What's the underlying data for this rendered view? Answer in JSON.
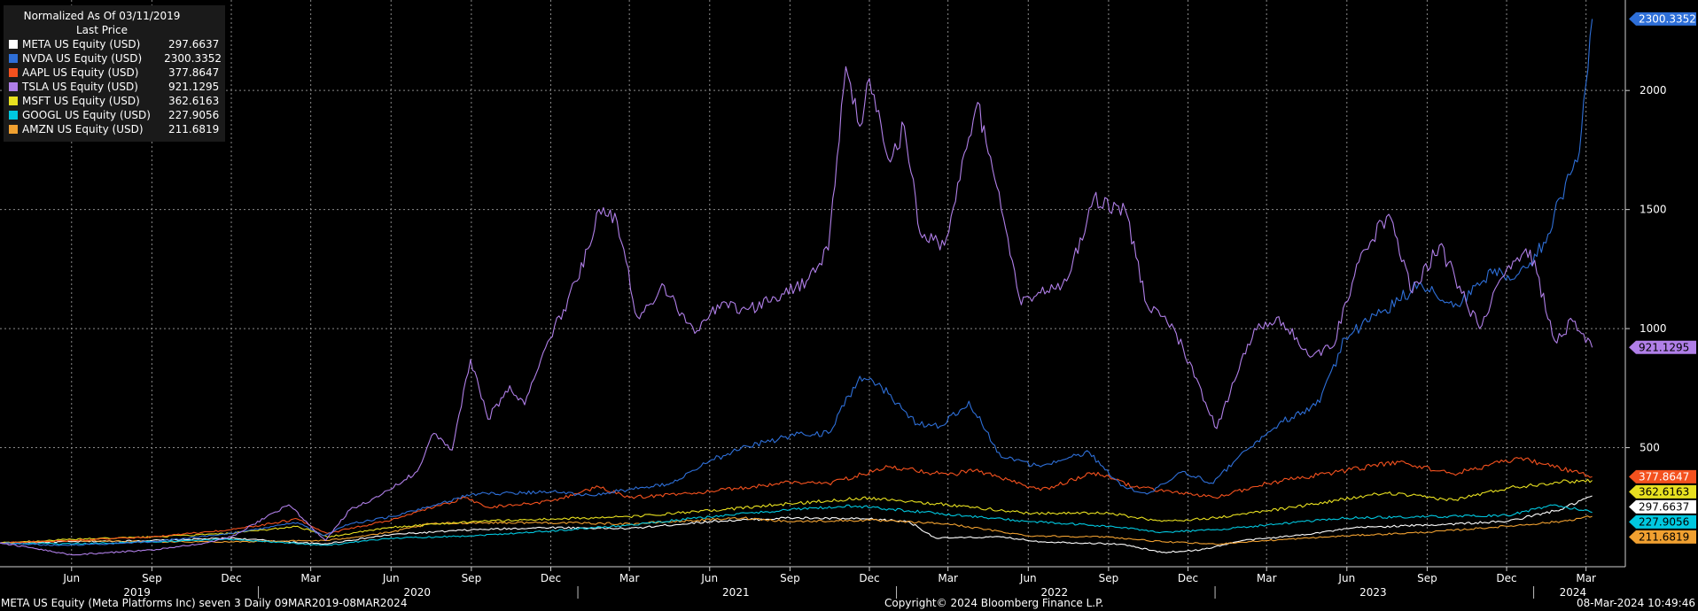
{
  "legend": {
    "title": "Normalized As Of 03/11/2019",
    "subtitle": "Last Price"
  },
  "footer": {
    "left": "META US Equity (Meta Platforms Inc) seven 3  Daily 09MAR2019-08MAR2024",
    "center": "Copyright© 2024 Bloomberg Finance L.P.",
    "right": "08-Mar-2024 10:49:46"
  },
  "chart_data": {
    "type": "line",
    "grid": true,
    "legend_position": "top-left",
    "ylim": [
      0,
      2380
    ],
    "yticks": [
      500,
      1000,
      1500,
      2000
    ],
    "xlim": [
      "2019-03-11",
      "2024-04-15"
    ],
    "month_ticks": [
      {
        "label": "Jun",
        "date": "2019-06-01"
      },
      {
        "label": "Sep",
        "date": "2019-09-01"
      },
      {
        "label": "Dec",
        "date": "2019-12-01"
      },
      {
        "label": "Mar",
        "date": "2020-03-01"
      },
      {
        "label": "Jun",
        "date": "2020-06-01"
      },
      {
        "label": "Sep",
        "date": "2020-09-01"
      },
      {
        "label": "Dec",
        "date": "2020-12-01"
      },
      {
        "label": "Mar",
        "date": "2021-03-01"
      },
      {
        "label": "Jun",
        "date": "2021-06-01"
      },
      {
        "label": "Sep",
        "date": "2021-09-01"
      },
      {
        "label": "Dec",
        "date": "2021-12-01"
      },
      {
        "label": "Mar",
        "date": "2022-03-01"
      },
      {
        "label": "Jun",
        "date": "2022-06-01"
      },
      {
        "label": "Sep",
        "date": "2022-09-01"
      },
      {
        "label": "Dec",
        "date": "2022-12-01"
      },
      {
        "label": "Mar",
        "date": "2023-03-01"
      },
      {
        "label": "Jun",
        "date": "2023-06-01"
      },
      {
        "label": "Sep",
        "date": "2023-09-01"
      },
      {
        "label": "Dec",
        "date": "2023-12-01"
      },
      {
        "label": "Mar",
        "date": "2024-03-01"
      }
    ],
    "year_ticks": [
      {
        "label": "2019",
        "date": "2019-08-15"
      },
      {
        "label": "2020",
        "date": "2020-07-01"
      },
      {
        "label": "2021",
        "date": "2021-07-01"
      },
      {
        "label": "2022",
        "date": "2022-07-01"
      },
      {
        "label": "2023",
        "date": "2023-07-01"
      },
      {
        "label": "2024",
        "date": "2024-02-15"
      }
    ],
    "year_dividers": [
      "2020-01-01",
      "2021-01-01",
      "2022-01-01",
      "2023-01-01",
      "2024-01-01"
    ],
    "series": [
      {
        "name": "META US Equity (USD)",
        "last": "297.6637",
        "color": "#ffffff",
        "points": [
          [
            "2019-03-11",
            100
          ],
          [
            "2019-06-01",
            105
          ],
          [
            "2019-09-01",
            110
          ],
          [
            "2019-12-01",
            120
          ],
          [
            "2020-03-15",
            95
          ],
          [
            "2020-06-01",
            135
          ],
          [
            "2020-09-01",
            155
          ],
          [
            "2020-12-01",
            165
          ],
          [
            "2021-03-01",
            160
          ],
          [
            "2021-06-01",
            190
          ],
          [
            "2021-09-01",
            205
          ],
          [
            "2021-12-01",
            200
          ],
          [
            "2022-01-15",
            190
          ],
          [
            "2022-02-15",
            120
          ],
          [
            "2022-05-01",
            125
          ],
          [
            "2022-06-15",
            105
          ],
          [
            "2022-09-15",
            95
          ],
          [
            "2022-11-01",
            60
          ],
          [
            "2022-12-15",
            70
          ],
          [
            "2023-02-01",
            110
          ],
          [
            "2023-04-01",
            130
          ],
          [
            "2023-06-15",
            165
          ],
          [
            "2023-09-01",
            175
          ],
          [
            "2023-12-01",
            190
          ],
          [
            "2024-02-01",
            240
          ],
          [
            "2024-03-08",
            297.66
          ]
        ]
      },
      {
        "name": "NVDA US Equity (USD)",
        "last": "2300.3352",
        "color": "#2e6fd8",
        "points": [
          [
            "2019-03-11",
            100
          ],
          [
            "2019-05-15",
            90
          ],
          [
            "2019-07-01",
            95
          ],
          [
            "2019-09-01",
            105
          ],
          [
            "2019-12-01",
            140
          ],
          [
            "2020-02-15",
            185
          ],
          [
            "2020-03-15",
            130
          ],
          [
            "2020-04-15",
            180
          ],
          [
            "2020-06-01",
            210
          ],
          [
            "2020-07-15",
            250
          ],
          [
            "2020-09-01",
            305
          ],
          [
            "2020-12-01",
            315
          ],
          [
            "2021-01-15",
            300
          ],
          [
            "2021-03-01",
            325
          ],
          [
            "2021-04-15",
            345
          ],
          [
            "2021-06-01",
            445
          ],
          [
            "2021-07-15",
            505
          ],
          [
            "2021-09-01",
            550
          ],
          [
            "2021-10-15",
            560
          ],
          [
            "2021-11-20",
            800
          ],
          [
            "2021-12-15",
            755
          ],
          [
            "2022-01-25",
            600
          ],
          [
            "2022-02-20",
            590
          ],
          [
            "2022-03-25",
            695
          ],
          [
            "2022-05-01",
            460
          ],
          [
            "2022-06-15",
            420
          ],
          [
            "2022-08-10",
            480
          ],
          [
            "2022-09-15",
            340
          ],
          [
            "2022-10-15",
            305
          ],
          [
            "2022-11-25",
            400
          ],
          [
            "2022-12-30",
            350
          ],
          [
            "2023-02-01",
            480
          ],
          [
            "2023-03-15",
            600
          ],
          [
            "2023-05-01",
            690
          ],
          [
            "2023-05-30",
            960
          ],
          [
            "2023-07-15",
            1080
          ],
          [
            "2023-08-25",
            1190
          ],
          [
            "2023-10-01",
            1090
          ],
          [
            "2023-11-15",
            1230
          ],
          [
            "2023-12-15",
            1230
          ],
          [
            "2024-01-15",
            1360
          ],
          [
            "2024-02-01",
            1550
          ],
          [
            "2024-02-20",
            1700
          ],
          [
            "2024-03-08",
            2300.34
          ]
        ]
      },
      {
        "name": "AAPL US Equity (USD)",
        "last": "377.8647",
        "color": "#f4511e",
        "points": [
          [
            "2019-03-11",
            100
          ],
          [
            "2019-06-01",
            110
          ],
          [
            "2019-09-01",
            125
          ],
          [
            "2019-12-01",
            155
          ],
          [
            "2020-02-15",
            200
          ],
          [
            "2020-03-20",
            140
          ],
          [
            "2020-06-01",
            195
          ],
          [
            "2020-08-25",
            290
          ],
          [
            "2020-09-20",
            250
          ],
          [
            "2020-12-01",
            275
          ],
          [
            "2021-01-25",
            335
          ],
          [
            "2021-03-01",
            290
          ],
          [
            "2021-06-01",
            315
          ],
          [
            "2021-09-01",
            355
          ],
          [
            "2021-10-15",
            350
          ],
          [
            "2021-12-25",
            420
          ],
          [
            "2022-03-01",
            385
          ],
          [
            "2022-04-01",
            405
          ],
          [
            "2022-06-15",
            320
          ],
          [
            "2022-08-15",
            395
          ],
          [
            "2022-10-01",
            335
          ],
          [
            "2023-01-01",
            290
          ],
          [
            "2023-03-01",
            350
          ],
          [
            "2023-06-01",
            405
          ],
          [
            "2023-07-31",
            440
          ],
          [
            "2023-10-01",
            390
          ],
          [
            "2023-12-15",
            455
          ],
          [
            "2024-01-15",
            430
          ],
          [
            "2024-03-08",
            377.86
          ]
        ]
      },
      {
        "name": "TSLA US Equity (USD)",
        "last": "921.1295",
        "color": "#b07fe8",
        "points": [
          [
            "2019-03-11",
            100
          ],
          [
            "2019-04-15",
            80
          ],
          [
            "2019-06-01",
            50
          ],
          [
            "2019-09-01",
            70
          ],
          [
            "2019-10-25",
            95
          ],
          [
            "2019-12-01",
            125
          ],
          [
            "2020-01-20",
            230
          ],
          [
            "2020-02-05",
            260
          ],
          [
            "2020-03-18",
            110
          ],
          [
            "2020-04-15",
            240
          ],
          [
            "2020-05-20",
            300
          ],
          [
            "2020-07-01",
            400
          ],
          [
            "2020-07-20",
            560
          ],
          [
            "2020-08-10",
            490
          ],
          [
            "2020-08-31",
            870
          ],
          [
            "2020-09-20",
            620
          ],
          [
            "2020-10-15",
            760
          ],
          [
            "2020-11-01",
            680
          ],
          [
            "2020-11-25",
            920
          ],
          [
            "2020-12-31",
            1200
          ],
          [
            "2021-01-25",
            1500
          ],
          [
            "2021-02-15",
            1450
          ],
          [
            "2021-03-10",
            1050
          ],
          [
            "2021-04-10",
            1180
          ],
          [
            "2021-05-15",
            980
          ],
          [
            "2021-06-15",
            1110
          ],
          [
            "2021-07-15",
            1080
          ],
          [
            "2021-08-15",
            1130
          ],
          [
            "2021-09-20",
            1200
          ],
          [
            "2021-10-15",
            1330
          ],
          [
            "2021-11-04",
            2100
          ],
          [
            "2021-11-20",
            1850
          ],
          [
            "2021-12-01",
            2050
          ],
          [
            "2021-12-25",
            1700
          ],
          [
            "2022-01-10",
            1850
          ],
          [
            "2022-01-28",
            1400
          ],
          [
            "2022-02-25",
            1350
          ],
          [
            "2022-04-04",
            1950
          ],
          [
            "2022-05-01",
            1500
          ],
          [
            "2022-05-24",
            1100
          ],
          [
            "2022-06-15",
            1150
          ],
          [
            "2022-07-15",
            1200
          ],
          [
            "2022-08-15",
            1550
          ],
          [
            "2022-09-20",
            1500
          ],
          [
            "2022-10-15",
            1100
          ],
          [
            "2022-11-15",
            1000
          ],
          [
            "2023-01-03",
            580
          ],
          [
            "2023-02-15",
            1000
          ],
          [
            "2023-03-15",
            1050
          ],
          [
            "2023-04-20",
            880
          ],
          [
            "2023-05-15",
            920
          ],
          [
            "2023-06-20",
            1330
          ],
          [
            "2023-07-19",
            1480
          ],
          [
            "2023-08-15",
            1150
          ],
          [
            "2023-09-15",
            1350
          ],
          [
            "2023-10-31",
            1000
          ],
          [
            "2023-12-01",
            1250
          ],
          [
            "2023-12-28",
            1330
          ],
          [
            "2024-01-25",
            950
          ],
          [
            "2024-02-15",
            1030
          ],
          [
            "2024-03-08",
            921.13
          ]
        ]
      },
      {
        "name": "MSFT US Equity (USD)",
        "last": "362.6163",
        "color": "#e8e020",
        "points": [
          [
            "2019-03-11",
            100
          ],
          [
            "2019-06-01",
            115
          ],
          [
            "2019-09-01",
            125
          ],
          [
            "2019-12-01",
            140
          ],
          [
            "2020-02-15",
            170
          ],
          [
            "2020-03-20",
            125
          ],
          [
            "2020-06-01",
            165
          ],
          [
            "2020-09-01",
            190
          ],
          [
            "2020-12-01",
            200
          ],
          [
            "2021-03-01",
            210
          ],
          [
            "2021-06-01",
            235
          ],
          [
            "2021-09-01",
            265
          ],
          [
            "2021-12-01",
            290
          ],
          [
            "2022-03-01",
            260
          ],
          [
            "2022-06-01",
            225
          ],
          [
            "2022-09-01",
            225
          ],
          [
            "2022-11-01",
            190
          ],
          [
            "2023-01-01",
            205
          ],
          [
            "2023-04-01",
            250
          ],
          [
            "2023-07-15",
            310
          ],
          [
            "2023-10-01",
            280
          ],
          [
            "2023-12-01",
            330
          ],
          [
            "2024-01-25",
            355
          ],
          [
            "2024-03-08",
            362.62
          ]
        ]
      },
      {
        "name": "GOOGL US Equity (USD)",
        "last": "227.9056",
        "color": "#00c8e0",
        "points": [
          [
            "2019-03-11",
            100
          ],
          [
            "2019-06-01",
            95
          ],
          [
            "2019-09-01",
            105
          ],
          [
            "2019-12-01",
            115
          ],
          [
            "2020-03-20",
            90
          ],
          [
            "2020-06-01",
            120
          ],
          [
            "2020-09-01",
            130
          ],
          [
            "2020-12-01",
            150
          ],
          [
            "2021-03-01",
            175
          ],
          [
            "2021-06-01",
            210
          ],
          [
            "2021-09-01",
            240
          ],
          [
            "2021-11-15",
            255
          ],
          [
            "2022-01-15",
            235
          ],
          [
            "2022-06-01",
            190
          ],
          [
            "2022-09-01",
            170
          ],
          [
            "2022-11-01",
            145
          ],
          [
            "2023-01-01",
            155
          ],
          [
            "2023-03-01",
            175
          ],
          [
            "2023-06-01",
            205
          ],
          [
            "2023-09-01",
            210
          ],
          [
            "2023-12-01",
            215
          ],
          [
            "2024-01-25",
            260
          ],
          [
            "2024-03-08",
            227.91
          ]
        ]
      },
      {
        "name": "AMZN US Equity (USD)",
        "last": "211.6819",
        "color": "#f0a030",
        "points": [
          [
            "2019-03-11",
            100
          ],
          [
            "2019-06-01",
            110
          ],
          [
            "2019-09-01",
            105
          ],
          [
            "2019-12-01",
            105
          ],
          [
            "2020-03-20",
            110
          ],
          [
            "2020-06-01",
            145
          ],
          [
            "2020-07-15",
            180
          ],
          [
            "2020-09-01",
            185
          ],
          [
            "2020-12-01",
            185
          ],
          [
            "2021-03-01",
            180
          ],
          [
            "2021-07-10",
            205
          ],
          [
            "2021-09-01",
            190
          ],
          [
            "2021-12-01",
            195
          ],
          [
            "2022-03-01",
            180
          ],
          [
            "2022-06-01",
            130
          ],
          [
            "2022-09-01",
            125
          ],
          [
            "2022-11-01",
            105
          ],
          [
            "2023-01-01",
            95
          ],
          [
            "2023-03-01",
            110
          ],
          [
            "2023-06-01",
            130
          ],
          [
            "2023-09-01",
            145
          ],
          [
            "2023-12-01",
            170
          ],
          [
            "2024-02-01",
            190
          ],
          [
            "2024-03-08",
            211.68
          ]
        ]
      }
    ]
  }
}
